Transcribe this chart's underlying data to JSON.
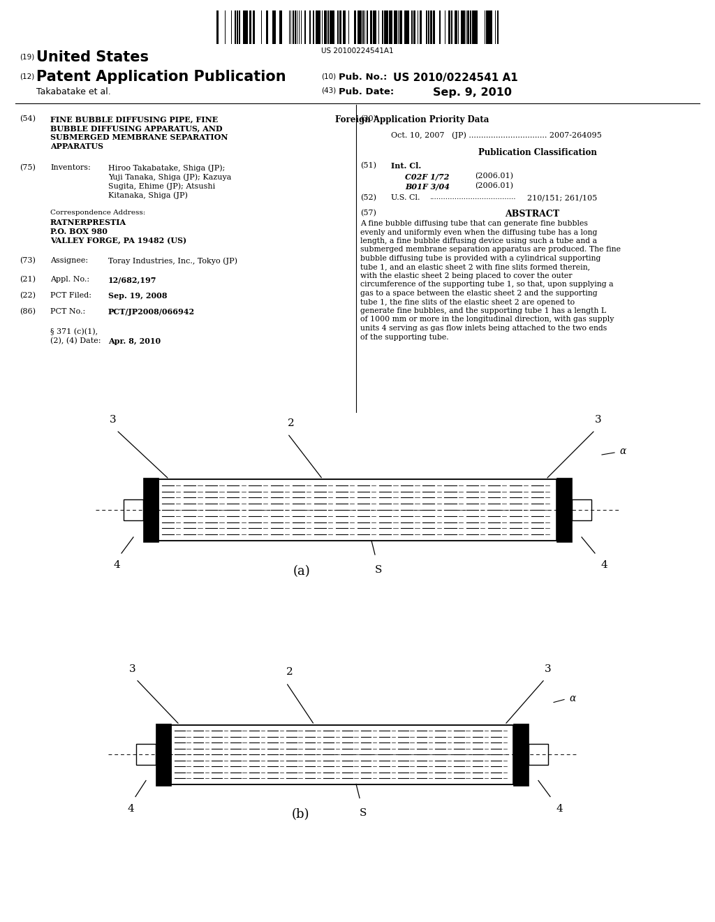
{
  "barcode_text": "US 20100224541A1",
  "pub_number": "US 2010/0224541 A1",
  "pub_date": "Sep. 9, 2010",
  "applicant": "Takabatake et al.",
  "country": "United States",
  "section54_title_line1": "FINE BUBBLE DIFFUSING PIPE, FINE",
  "section54_title_line2": "BUBBLE DIFFUSING APPARATUS, AND",
  "section54_title_line3": "SUBMERGED MEMBRANE SEPARATION",
  "section54_title_line4": "APPARATUS",
  "section30_text": "Oct. 10, 2007   (JP) ................................ 2007-264095",
  "section51_text1": "C02F 1/72",
  "section51_text2": "(2006.01)",
  "section51_text3": "B01F 3/04",
  "section51_text4": "(2006.01)",
  "section52_text": "210/151; 261/105",
  "abstract_text": "A fine bubble diffusing tube that can generate fine bubbles evenly and uniformly even when the diffusing tube has a long length, a fine bubble diffusing device using such a tube and a submerged membrane separation apparatus are produced. The fine bubble diffusing tube is provided with a cylindrical supporting tube 1, and an elastic sheet 2 with fine slits formed therein, with the elastic sheet 2 being placed to cover the outer circumference of the supporting tube 1, so that, upon supplying a gas to a space between the elastic sheet 2 and the supporting tube 1, the fine slits of the elastic sheet 2 are opened to generate fine bubbles, and the supporting tube 1 has a length L of 1000 mm or more in the longitudinal direction, with gas supply units 4 serving as gas flow inlets being attached to the two ends of the supporting tube.",
  "bg_color": "#ffffff"
}
